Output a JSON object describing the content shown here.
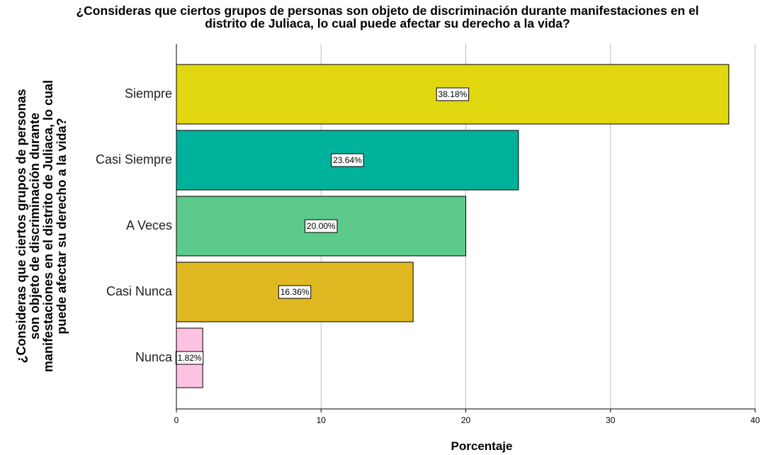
{
  "chart_data": {
    "type": "bar",
    "orientation": "horizontal",
    "title_lines": [
      "¿Consideras que ciertos grupos de personas son objeto de discriminación durante manifestaciones en el",
      "distrito de Juliaca, lo cual puede afectar su derecho a la vida?"
    ],
    "ylabel_lines": [
      "¿Consideras que ciertos grupos de personas",
      "son objeto de discriminación durante",
      "manifestaciones en el distrito de Juliaca, lo cual",
      "puede afectar su derecho a la vida?"
    ],
    "xlabel": "Porcentaje",
    "categories": [
      "Siempre",
      "Casi Siempre",
      "A Veces",
      "Casi Nunca",
      "Nunca"
    ],
    "values": [
      38.18,
      23.64,
      20.0,
      16.36,
      1.82
    ],
    "data_labels": [
      "38.18%",
      "23.64%",
      "20.00%",
      "16.36%",
      "1.82%"
    ],
    "colors": [
      "#e1d70f",
      "#00b29c",
      "#5cca8a",
      "#e0b922",
      "#ffc2e2"
    ],
    "xlim": [
      0,
      40
    ],
    "xticks": [
      "0",
      "10",
      "20",
      "30",
      "40"
    ],
    "grid": true
  }
}
